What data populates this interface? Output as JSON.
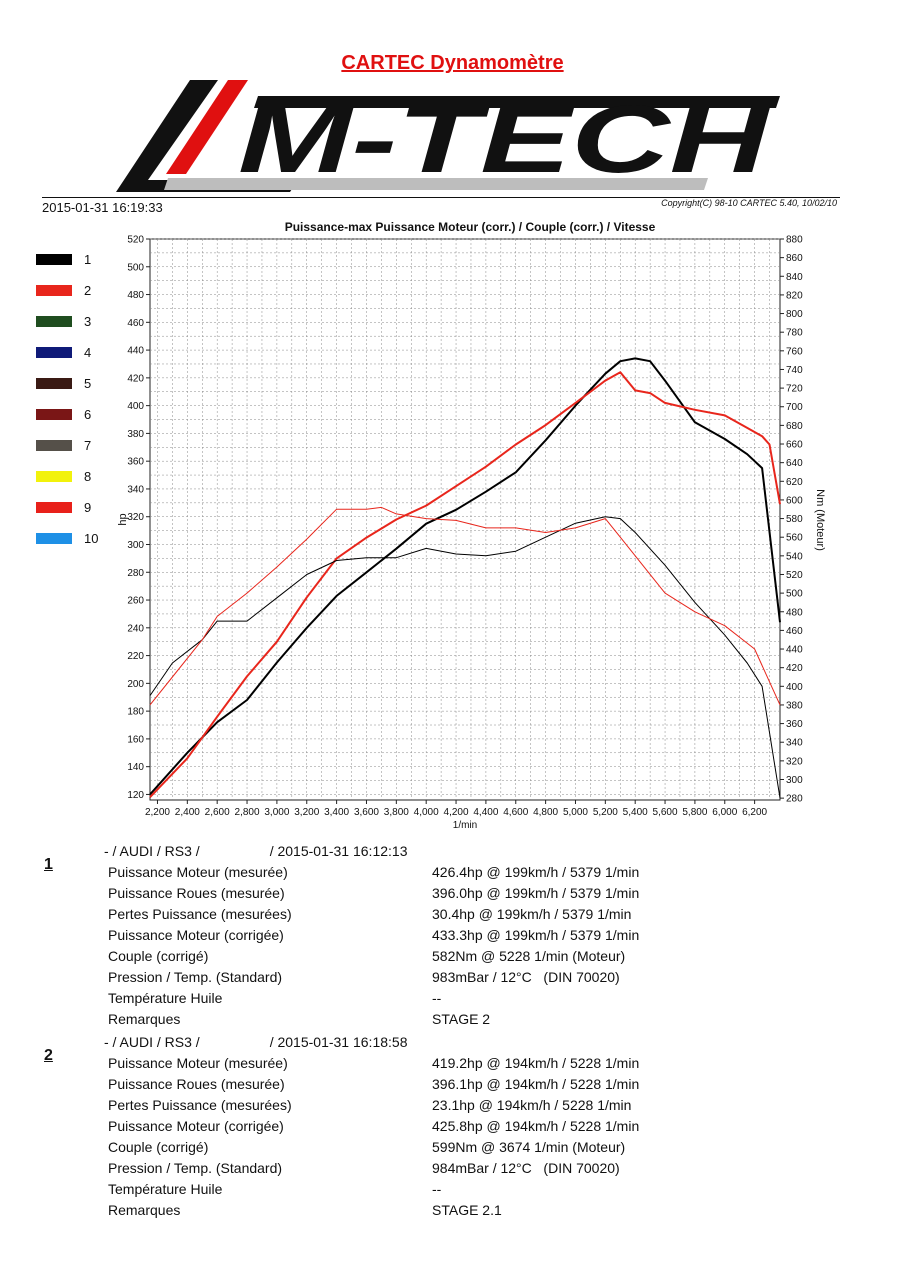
{
  "header": {
    "title": "CARTEC Dynamomètre",
    "logo_text": "M-TECH",
    "datetime": "2015-01-31 16:19:33",
    "copyright": "Copyright(C) 98-10 CARTEC 5.40, 10/02/10"
  },
  "legend": [
    {
      "label": "1",
      "color": "#000000"
    },
    {
      "label": "2",
      "color": "#e8261c"
    },
    {
      "label": "3",
      "color": "#1f4d1f"
    },
    {
      "label": "4",
      "color": "#0f1a78"
    },
    {
      "label": "5",
      "color": "#3a1a14"
    },
    {
      "label": "6",
      "color": "#7a1616"
    },
    {
      "label": "7",
      "color": "#555049"
    },
    {
      "label": "8",
      "color": "#f2f20c"
    },
    {
      "label": "9",
      "color": "#e8201a"
    },
    {
      "label": "10",
      "color": "#1e90e6"
    }
  ],
  "chart_data": {
    "type": "line",
    "title": "Puissance-max Puissance Moteur (corr.) / Couple (corr.) / Vitesse",
    "xlabel": "1/min",
    "ylabel": "hp",
    "y2label": "Nm (Moteur)",
    "xlim": [
      2150,
      6370
    ],
    "ylim": [
      116,
      520
    ],
    "y2lim": [
      278,
      880
    ],
    "grid": true,
    "x_ticks": [
      "2,200",
      "2,400",
      "2,600",
      "2,800",
      "3,000",
      "3,200",
      "3,400",
      "3,600",
      "3,800",
      "4,000",
      "4,200",
      "4,400",
      "4,600",
      "4,800",
      "5,000",
      "5,200",
      "5,400",
      "5,600",
      "5,800",
      "6,000",
      "6,200"
    ],
    "x_tick_values": [
      2200,
      2400,
      2600,
      2800,
      3000,
      3200,
      3400,
      3600,
      3800,
      4000,
      4200,
      4400,
      4600,
      4800,
      5000,
      5200,
      5400,
      5600,
      5800,
      6000,
      6200
    ],
    "y_ticks": [
      "120",
      "140",
      "160",
      "180",
      "200",
      "220",
      "240",
      "260",
      "280",
      "300",
      "320",
      "340",
      "360",
      "380",
      "400",
      "420",
      "440",
      "460",
      "480",
      "500",
      "520"
    ],
    "y_tick_values": [
      120,
      140,
      160,
      180,
      200,
      220,
      240,
      260,
      280,
      300,
      320,
      340,
      360,
      380,
      400,
      420,
      440,
      460,
      480,
      500,
      520
    ],
    "y2_ticks": [
      "280",
      "300",
      "320",
      "340",
      "360",
      "380",
      "400",
      "420",
      "440",
      "460",
      "480",
      "500",
      "520",
      "540",
      "560",
      "580",
      "600",
      "620",
      "640",
      "660",
      "680",
      "700",
      "720",
      "740",
      "760",
      "780",
      "800",
      "820",
      "840",
      "860",
      "880"
    ],
    "y2_tick_values": [
      280,
      300,
      320,
      340,
      360,
      380,
      400,
      420,
      440,
      460,
      480,
      500,
      520,
      540,
      560,
      580,
      600,
      620,
      640,
      660,
      680,
      700,
      720,
      740,
      760,
      780,
      800,
      820,
      840,
      860,
      880
    ],
    "series": [
      {
        "name": "1",
        "quantity": "power",
        "axis": "left",
        "color": "#000000",
        "x": [
          2150,
          2400,
          2600,
          2800,
          3000,
          3200,
          3400,
          3600,
          3800,
          4000,
          4200,
          4400,
          4600,
          4800,
          5000,
          5200,
          5300,
          5400,
          5500,
          5600,
          5800,
          6000,
          6150,
          6250,
          6370
        ],
        "y": [
          120,
          150,
          172,
          188,
          215,
          240,
          263,
          280,
          297,
          315,
          325,
          338,
          352,
          375,
          400,
          423,
          432,
          434,
          432,
          418,
          388,
          376,
          365,
          355,
          244
        ]
      },
      {
        "name": "2",
        "quantity": "power",
        "axis": "left",
        "color": "#e8261c",
        "x": [
          2150,
          2400,
          2600,
          2800,
          3000,
          3200,
          3400,
          3600,
          3800,
          4000,
          4200,
          4400,
          4600,
          4800,
          5000,
          5200,
          5300,
          5400,
          5500,
          5600,
          5800,
          6000,
          6150,
          6250,
          6300,
          6370
        ],
        "y": [
          118,
          146,
          176,
          205,
          230,
          262,
          290,
          305,
          318,
          328,
          342,
          356,
          372,
          386,
          402,
          418,
          424,
          411,
          409,
          402,
          397,
          393,
          384,
          378,
          372,
          329
        ]
      },
      {
        "name": "1",
        "quantity": "torque",
        "axis": "right",
        "color": "#000000",
        "x": [
          2150,
          2300,
          2500,
          2600,
          2800,
          3000,
          3200,
          3400,
          3600,
          3800,
          4000,
          4200,
          4400,
          4600,
          4800,
          5000,
          5200,
          5300,
          5400,
          5600,
          5800,
          6000,
          6150,
          6250,
          6370
        ],
        "y": [
          390,
          425,
          450,
          470,
          470,
          495,
          520,
          535,
          538,
          538,
          548,
          542,
          540,
          545,
          560,
          575,
          582,
          580,
          565,
          530,
          490,
          455,
          425,
          400,
          280
        ]
      },
      {
        "name": "2",
        "quantity": "torque",
        "axis": "right",
        "color": "#e8261c",
        "x": [
          2150,
          2300,
          2500,
          2600,
          2800,
          3000,
          3200,
          3400,
          3600,
          3700,
          3800,
          4000,
          4200,
          4400,
          4600,
          4800,
          5000,
          5200,
          5300,
          5400,
          5600,
          5800,
          6000,
          6200,
          6370
        ],
        "y": [
          380,
          410,
          450,
          475,
          500,
          528,
          558,
          590,
          590,
          592,
          585,
          580,
          578,
          570,
          570,
          565,
          570,
          580,
          560,
          540,
          500,
          480,
          465,
          440,
          380
        ]
      }
    ]
  },
  "runs": [
    {
      "number": "1",
      "head_left": "- / AUDI / RS3 /",
      "head_right": "/ 2015-01-31 16:12:13",
      "rows": [
        {
          "label": "Puissance Moteur (mesurée)",
          "value": "426.4hp @ 199km/h / 5379 1/min"
        },
        {
          "label": "Puissance Roues (mesurée)",
          "value": "396.0hp @ 199km/h / 5379 1/min"
        },
        {
          "label": "Pertes Puissance (mesurées)",
          "value": "30.4hp @ 199km/h / 5379 1/min"
        },
        {
          "label": "Puissance Moteur (corrigée)",
          "value": "433.3hp @ 199km/h / 5379 1/min"
        },
        {
          "label": "Couple (corrigé)",
          "value": "582Nm @ 5228 1/min (Moteur)"
        },
        {
          "label": "Pression / Temp. (Standard)",
          "value": "983mBar / 12°C   (DIN 70020)"
        },
        {
          "label": "Température Huile",
          "value": "--"
        },
        {
          "label": "Remarques",
          "value": "STAGE 2"
        }
      ]
    },
    {
      "number": "2",
      "head_left": "- / AUDI / RS3 /",
      "head_right": "/ 2015-01-31 16:18:58",
      "rows": [
        {
          "label": "Puissance Moteur (mesurée)",
          "value": "419.2hp @ 194km/h / 5228 1/min"
        },
        {
          "label": "Puissance Roues (mesurée)",
          "value": "396.1hp @ 194km/h / 5228 1/min"
        },
        {
          "label": "Pertes Puissance (mesurées)",
          "value": "23.1hp @ 194km/h / 5228 1/min"
        },
        {
          "label": "Puissance Moteur (corrigée)",
          "value": "425.8hp @ 194km/h / 5228 1/min"
        },
        {
          "label": "Couple (corrigé)",
          "value": "599Nm @ 3674 1/min (Moteur)"
        },
        {
          "label": "Pression / Temp. (Standard)",
          "value": "984mBar / 12°C   (DIN 70020)"
        },
        {
          "label": "Température Huile",
          "value": "--"
        },
        {
          "label": "Remarques",
          "value": "STAGE 2.1"
        }
      ]
    }
  ]
}
